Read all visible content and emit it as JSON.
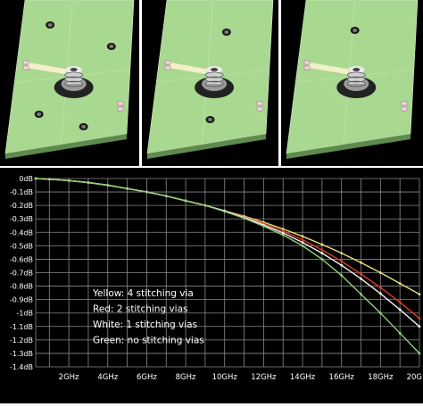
{
  "panels": [
    {
      "name": "4 stitching vias",
      "vias": 4
    },
    {
      "name": "2 stitching vias",
      "vias": 2
    },
    {
      "name": "1 stitching via",
      "vias": 1
    }
  ],
  "colors": {
    "board_top": "#a9d890",
    "board_side": "#5f8a4e",
    "panel_bg": "#000000",
    "chart_bg": "#000000",
    "grid": "#8a8a8a",
    "tick_text": "#ffffff",
    "legend_text": "#ffffff"
  },
  "chart_data": {
    "type": "line",
    "title": "",
    "xlabel": "",
    "ylabel": "",
    "x_ticks": [
      "2GHz",
      "4GHz",
      "6GHz",
      "8GHz",
      "10GHz",
      "12GHz",
      "14GHz",
      "16GHz",
      "18GHz",
      "20G"
    ],
    "y_ticks": [
      "0dB",
      "-0.1dB",
      "-0.2dB",
      "-0.3dB",
      "-0.4dB",
      "-0.5dB",
      "-0.6dB",
      "-0.7dB",
      "-0.8dB",
      "-0.9dB",
      "-1dB",
      "-1.1dB",
      "-1.2dB",
      "-1.3dB",
      "-1.4dB"
    ],
    "xlim": [
      0.3,
      20
    ],
    "ylim": [
      -1.4,
      0
    ],
    "grid": true,
    "x": [
      0.3,
      1,
      2,
      3,
      4,
      5,
      6,
      7,
      8,
      9,
      10,
      11,
      12,
      13,
      14,
      15,
      16,
      17,
      18,
      19,
      20
    ],
    "legend_lines": [
      "Yellow: 4 stitching via",
      "Red: 2 stitching vias",
      "White: 1 stitching vias",
      "Green: no stitching vias"
    ],
    "series": [
      {
        "color": "#e8e07a",
        "values": [
          0,
          -0.005,
          -0.015,
          -0.03,
          -0.05,
          -0.075,
          -0.1,
          -0.13,
          -0.165,
          -0.2,
          -0.24,
          -0.28,
          -0.325,
          -0.375,
          -0.43,
          -0.49,
          -0.555,
          -0.625,
          -0.7,
          -0.78,
          -0.86
        ]
      },
      {
        "color": "#e03a2a",
        "values": [
          0,
          -0.005,
          -0.015,
          -0.03,
          -0.05,
          -0.075,
          -0.1,
          -0.13,
          -0.165,
          -0.2,
          -0.24,
          -0.285,
          -0.335,
          -0.39,
          -0.455,
          -0.53,
          -0.615,
          -0.71,
          -0.81,
          -0.92,
          -1.04
        ]
      },
      {
        "color": "#f2f2f2",
        "values": [
          0,
          -0.005,
          -0.015,
          -0.03,
          -0.05,
          -0.075,
          -0.1,
          -0.13,
          -0.165,
          -0.2,
          -0.24,
          -0.29,
          -0.345,
          -0.405,
          -0.475,
          -0.555,
          -0.645,
          -0.745,
          -0.855,
          -0.975,
          -1.1
        ]
      },
      {
        "color": "#8fd27a",
        "values": [
          0,
          -0.005,
          -0.015,
          -0.03,
          -0.05,
          -0.075,
          -0.1,
          -0.13,
          -0.165,
          -0.2,
          -0.245,
          -0.295,
          -0.355,
          -0.42,
          -0.5,
          -0.6,
          -0.72,
          -0.86,
          -1.0,
          -1.15,
          -1.3
        ]
      }
    ]
  }
}
